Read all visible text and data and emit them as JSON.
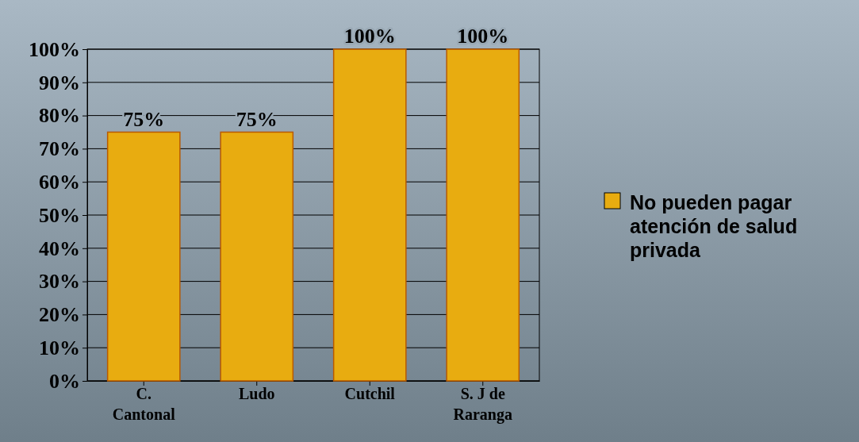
{
  "chart_data": {
    "type": "bar",
    "categories": [
      "C. Cantonal",
      "Ludo",
      "Cutchil",
      "S. J de Raranga"
    ],
    "series": [
      {
        "name": "No pueden pagar atención de salud privada",
        "color": "#e8ac10",
        "values": [
          75,
          75,
          100,
          100
        ],
        "value_labels": [
          "75%",
          "75%",
          "100%",
          "100%"
        ]
      }
    ],
    "ylim": [
      0,
      100
    ],
    "yticks": [
      {
        "value": 0,
        "label": "0%"
      },
      {
        "value": 10,
        "label": "10%"
      },
      {
        "value": 20,
        "label": "20%"
      },
      {
        "value": 30,
        "label": "30%"
      },
      {
        "value": 40,
        "label": "40%"
      },
      {
        "value": 50,
        "label": "50%"
      },
      {
        "value": 60,
        "label": "60%"
      },
      {
        "value": 70,
        "label": "70%"
      },
      {
        "value": 80,
        "label": "80%"
      },
      {
        "value": 90,
        "label": "90%"
      },
      {
        "value": 100,
        "label": "100%"
      }
    ],
    "grid": "y",
    "legend": "right"
  }
}
